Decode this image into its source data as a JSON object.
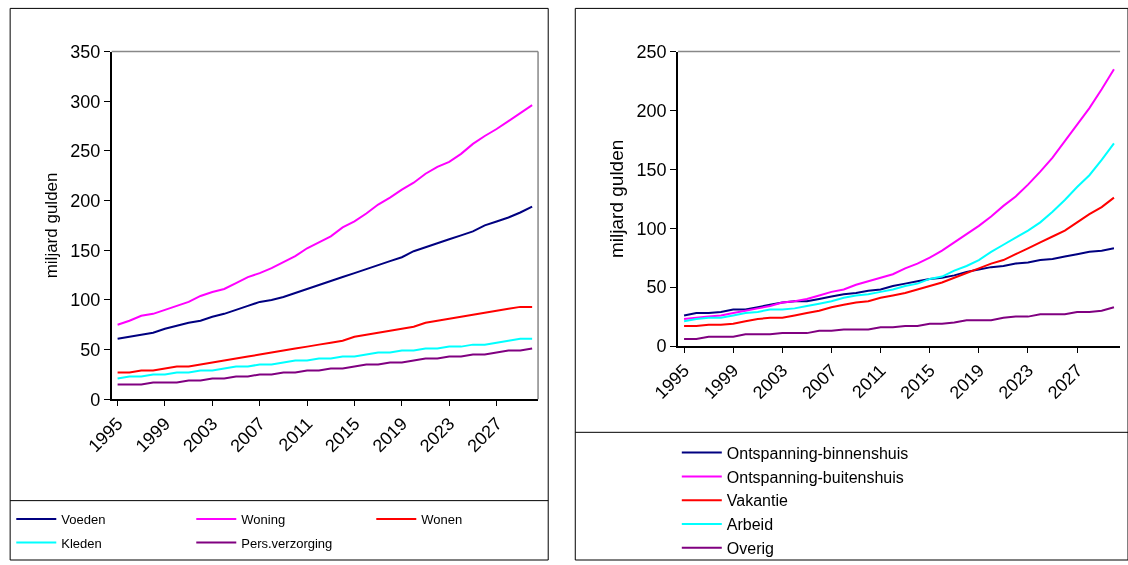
{
  "chart_data": [
    {
      "type": "line",
      "ylabel": "miljard gulden",
      "legend": "bottom",
      "categories": [
        "1995",
        null,
        null,
        null,
        "1999",
        null,
        null,
        null,
        "2003",
        null,
        null,
        null,
        "2007",
        null,
        null,
        null,
        "2011",
        null,
        null,
        null,
        "2015",
        null,
        null,
        null,
        "2019",
        null,
        null,
        null,
        "2023",
        null,
        null,
        null,
        "2027",
        null,
        null,
        null
      ],
      "ylim": [
        0,
        350
      ],
      "yticks": [
        0,
        50,
        100,
        150,
        200,
        250,
        300,
        350
      ],
      "series": [
        {
          "name": "Voeden",
          "color": "#000080",
          "values": [
            61,
            63,
            65,
            67,
            71,
            74,
            77,
            79,
            83,
            86,
            90,
            94,
            98,
            100,
            103,
            107,
            111,
            115,
            119,
            123,
            127,
            131,
            135,
            139,
            143,
            149,
            153,
            157,
            161,
            165,
            169,
            175,
            179,
            183,
            188,
            194
          ]
        },
        {
          "name": "Woning",
          "color": "#ff00ff",
          "values": [
            75,
            79,
            84,
            86,
            90,
            94,
            98,
            104,
            108,
            111,
            117,
            123,
            127,
            132,
            138,
            144,
            152,
            158,
            164,
            173,
            179,
            187,
            196,
            203,
            211,
            218,
            227,
            234,
            239,
            247,
            257,
            265,
            272,
            280,
            288,
            296
          ]
        },
        {
          "name": "Wonen",
          "color": "#ff0000",
          "values": [
            27,
            27,
            29,
            29,
            31,
            33,
            33,
            35,
            37,
            39,
            41,
            43,
            45,
            47,
            49,
            51,
            53,
            55,
            57,
            59,
            63,
            65,
            67,
            69,
            71,
            73,
            77,
            79,
            81,
            83,
            85,
            87,
            89,
            91,
            93,
            93
          ]
        },
        {
          "name": "Kleden",
          "color": "#00ffff",
          "values": [
            21,
            23,
            23,
            25,
            25,
            27,
            27,
            29,
            29,
            31,
            33,
            33,
            35,
            35,
            37,
            39,
            39,
            41,
            41,
            43,
            43,
            45,
            47,
            47,
            49,
            49,
            51,
            51,
            53,
            53,
            55,
            55,
            57,
            59,
            61,
            61
          ]
        },
        {
          "name": "Pers.verzorging",
          "color": "#800080",
          "values": [
            15,
            15,
            15,
            17,
            17,
            17,
            19,
            19,
            21,
            21,
            23,
            23,
            25,
            25,
            27,
            27,
            29,
            29,
            31,
            31,
            33,
            35,
            35,
            37,
            37,
            39,
            41,
            41,
            43,
            43,
            45,
            45,
            47,
            49,
            49,
            51
          ]
        }
      ]
    },
    {
      "type": "line",
      "ylabel": "miljard gulden",
      "legend": "bottom",
      "categories": [
        "1995",
        null,
        null,
        null,
        "1999",
        null,
        null,
        null,
        "2003",
        null,
        null,
        null,
        "2007",
        null,
        null,
        null,
        "2011",
        null,
        null,
        null,
        "2015",
        null,
        null,
        null,
        "2019",
        null,
        null,
        null,
        "2023",
        null,
        null,
        null,
        "2027",
        null,
        null,
        null
      ],
      "ylim": [
        0,
        250
      ],
      "yticks": [
        0,
        50,
        100,
        150,
        200,
        250
      ],
      "series": [
        {
          "name": "Ontspanning-binnenshuis",
          "color": "#000080",
          "values": [
            26,
            28,
            28,
            29,
            31,
            31,
            33,
            35,
            37,
            38,
            38,
            40,
            42,
            44,
            45,
            47,
            48,
            51,
            53,
            55,
            57,
            58,
            60,
            63,
            65,
            67,
            68,
            70,
            71,
            73,
            74,
            76,
            78,
            80,
            81,
            83
          ]
        },
        {
          "name": "Ontspanning-buitenshuis",
          "color": "#ff00ff",
          "values": [
            23,
            24,
            25,
            26,
            28,
            30,
            32,
            34,
            37,
            38,
            40,
            43,
            46,
            48,
            52,
            55,
            58,
            61,
            66,
            70,
            75,
            81,
            88,
            95,
            102,
            110,
            119,
            127,
            137,
            148,
            160,
            174,
            188,
            202,
            218,
            235
          ]
        },
        {
          "name": "Vakantie",
          "color": "#ff0000",
          "values": [
            17,
            17,
            18,
            18,
            19,
            21,
            23,
            24,
            24,
            26,
            28,
            30,
            33,
            35,
            37,
            38,
            41,
            43,
            45,
            48,
            51,
            54,
            58,
            62,
            66,
            70,
            73,
            78,
            83,
            88,
            93,
            98,
            105,
            112,
            118,
            126
          ]
        },
        {
          "name": "Arbeid",
          "color": "#00ffff",
          "values": [
            21,
            23,
            24,
            24,
            26,
            28,
            29,
            31,
            31,
            32,
            34,
            36,
            38,
            41,
            43,
            44,
            46,
            48,
            51,
            53,
            57,
            59,
            64,
            68,
            73,
            80,
            86,
            92,
            98,
            105,
            114,
            124,
            135,
            145,
            158,
            172
          ]
        },
        {
          "name": "Overig",
          "color": "#800080",
          "values": [
            6,
            6,
            8,
            8,
            8,
            10,
            10,
            10,
            11,
            11,
            11,
            13,
            13,
            14,
            14,
            14,
            16,
            16,
            17,
            17,
            19,
            19,
            20,
            22,
            22,
            22,
            24,
            25,
            25,
            27,
            27,
            27,
            29,
            29,
            30,
            33
          ]
        }
      ]
    }
  ]
}
